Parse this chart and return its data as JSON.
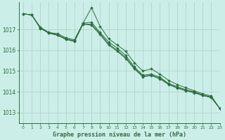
{
  "title": "Graphe pression niveau de la mer (hPa)",
  "bg_color": "#cceee8",
  "grid_color": "#b0d4cc",
  "line_color": "#2d6e3e",
  "xlim": [
    -0.5,
    23
  ],
  "ylim": [
    1012.5,
    1018.3
  ],
  "yticks": [
    1013,
    1014,
    1015,
    1016,
    1017
  ],
  "xticks": [
    0,
    1,
    2,
    3,
    4,
    5,
    6,
    7,
    8,
    9,
    10,
    11,
    12,
    13,
    14,
    15,
    16,
    17,
    18,
    19,
    20,
    21,
    22,
    23
  ],
  "series": [
    [
      1017.75,
      1017.7,
      1017.1,
      1016.85,
      1016.75,
      1016.55,
      1016.45,
      1017.3,
      1018.05,
      1017.15,
      1016.55,
      1016.25,
      1015.95,
      1015.4,
      1015.0,
      1015.1,
      1014.85,
      1014.55,
      1014.35,
      1014.2,
      1014.05,
      1013.9,
      1013.8,
      1013.2
    ],
    [
      1017.75,
      1017.7,
      1017.1,
      1016.85,
      1016.8,
      1016.6,
      1016.5,
      1017.3,
      1017.35,
      1016.85,
      1016.4,
      1016.1,
      1015.75,
      1015.2,
      1014.8,
      1014.85,
      1014.7,
      1014.4,
      1014.25,
      1014.1,
      1014.0,
      1013.85,
      1013.75,
      1013.2
    ],
    [
      1017.75,
      1017.7,
      1017.05,
      1016.82,
      1016.72,
      1016.52,
      1016.42,
      1017.25,
      1017.2,
      1016.75,
      1016.25,
      1015.95,
      1015.6,
      1015.1,
      1014.72,
      1014.78,
      1014.62,
      1014.35,
      1014.18,
      1014.05,
      1013.95,
      1013.82,
      1013.72,
      1013.2
    ],
    [
      1017.75,
      1017.7,
      1017.08,
      1016.83,
      1016.73,
      1016.53,
      1016.43,
      1017.27,
      1017.25,
      1016.8,
      1016.3,
      1016.0,
      1015.65,
      1015.15,
      1014.75,
      1014.8,
      1014.65,
      1014.38,
      1014.2,
      1014.07,
      1013.97,
      1013.83,
      1013.73,
      1013.2
    ]
  ]
}
